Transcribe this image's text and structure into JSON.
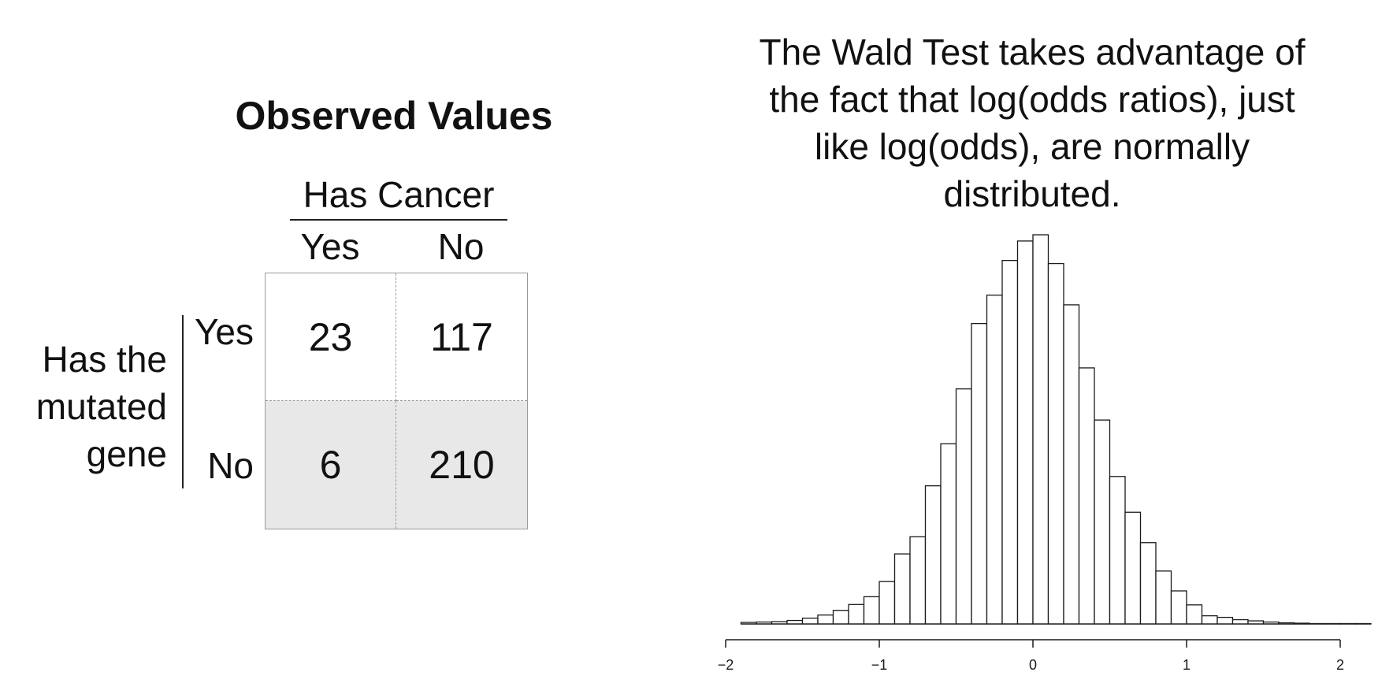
{
  "table": {
    "title": "Observed Values",
    "column_group": "Has Cancer",
    "column_headers": [
      "Yes",
      "No"
    ],
    "row_group_lines": [
      "Has the",
      "mutated",
      "gene"
    ],
    "row_headers": [
      "Yes",
      "No"
    ],
    "cells": [
      [
        "23",
        "117"
      ],
      [
        "6",
        "210"
      ]
    ],
    "shaded_row_color": "#e8e8e8"
  },
  "caption": {
    "lines": [
      "The Wald Test takes advantage of",
      "the fact that log(odds ratios), just",
      "like log(odds), are normally",
      "distributed."
    ]
  },
  "chart_data": {
    "type": "bar",
    "title": "",
    "xlabel": "",
    "ylabel": "",
    "xlim": [
      -2,
      2.2
    ],
    "x_ticks": [
      -2,
      -1,
      0,
      1,
      2
    ],
    "x_tick_labels": [
      "−2",
      "−1",
      "0",
      "1",
      "2"
    ],
    "bin_width": 0.1,
    "bin_starts": [
      -1.9,
      -1.8,
      -1.7,
      -1.6,
      -1.5,
      -1.4,
      -1.3,
      -1.2,
      -1.1,
      -1.0,
      -0.9,
      -0.8,
      -0.7,
      -0.6,
      -0.5,
      -0.4,
      -0.3,
      -0.2,
      -0.1,
      0.0,
      0.1,
      0.2,
      0.3,
      0.4,
      0.5,
      0.6,
      0.7,
      0.8,
      0.9,
      1.0,
      1.1,
      1.2,
      1.3,
      1.4,
      1.5,
      1.6,
      1.7,
      1.8,
      1.9,
      2.0,
      2.1
    ],
    "relative_heights": [
      0.004,
      0.005,
      0.006,
      0.009,
      0.015,
      0.023,
      0.035,
      0.05,
      0.07,
      0.109,
      0.18,
      0.224,
      0.355,
      0.463,
      0.604,
      0.772,
      0.845,
      0.934,
      0.984,
      1.0,
      0.926,
      0.82,
      0.658,
      0.524,
      0.379,
      0.287,
      0.209,
      0.136,
      0.085,
      0.049,
      0.021,
      0.017,
      0.011,
      0.008,
      0.005,
      0.003,
      0.002,
      0.001,
      0.001,
      0.001,
      0.001
    ],
    "y_axis_shown": false,
    "grid": false,
    "bar_fill": "#ffffff",
    "bar_stroke": "#1a1a1a"
  }
}
